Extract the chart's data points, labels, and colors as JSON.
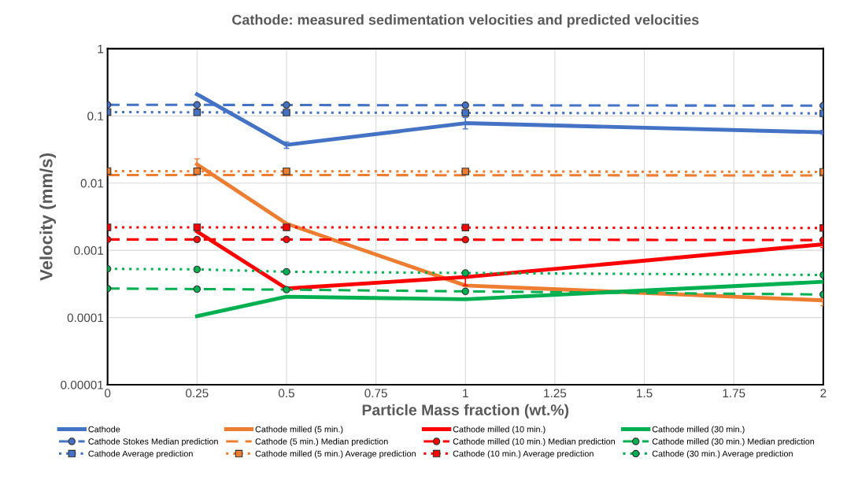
{
  "chart_data": {
    "type": "line",
    "title": "Cathode: measured sedimentation velocities and predicted velocities",
    "xlabel": "Particle Mass fraction (wt.%)",
    "ylabel": "Velocity (mm/s)",
    "log": "y",
    "grid": true,
    "legend": "bottom",
    "xlim": [
      0,
      2
    ],
    "xticks": [
      0,
      0.25,
      0.5,
      0.75,
      1,
      1.25,
      1.5,
      1.75,
      2
    ],
    "ylim": [
      1e-05,
      1
    ],
    "yticks": [
      {
        "value": 1e-05,
        "label": "0.00001"
      },
      {
        "value": 0.0001,
        "label": "0.0001"
      },
      {
        "value": 0.001,
        "label": "0.001"
      },
      {
        "value": 0.01,
        "label": "0.01"
      },
      {
        "value": 0.1,
        "label": "0.1"
      },
      {
        "value": 1,
        "label": "1"
      }
    ],
    "series": [
      {
        "name": "Cathode",
        "color": "#4472c4",
        "line_style": "solid",
        "marker": "none",
        "x": [
          0.25,
          0.5,
          1,
          2
        ],
        "values": [
          0.21,
          0.037,
          0.078,
          0.057
        ],
        "errors": [
          null,
          [
            0.033,
            0.041
          ],
          [
            0.064,
            0.095
          ],
          [
            0.053,
            0.061
          ]
        ]
      },
      {
        "name": "Cathode milled (5 min.)",
        "color": "#ed7d31",
        "line_style": "solid",
        "marker": "none",
        "x": [
          0.25,
          0.5,
          1,
          2
        ],
        "values": [
          0.019,
          0.0025,
          0.0003,
          0.00018
        ],
        "errors": [
          [
            0.016,
            0.023
          ],
          null,
          null,
          [
            0.00015,
            0.0002
          ]
        ]
      },
      {
        "name": "Cathode milled (10 min.)",
        "color": "#ff0000",
        "line_style": "solid",
        "marker": "none",
        "x": [
          0.25,
          0.5,
          1,
          2
        ],
        "values": [
          0.0019,
          0.00027,
          0.0004,
          0.00123
        ],
        "errors": [
          null,
          null,
          [
            0.0003,
            0.00046
          ],
          [
            0.0011,
            0.0013
          ]
        ]
      },
      {
        "name": "Cathode milled (30 min.)",
        "color": "#00b050",
        "line_style": "solid",
        "marker": "none",
        "x": [
          0.25,
          0.5,
          1,
          2
        ],
        "values": [
          0.000105,
          0.000204,
          0.000187,
          0.00034
        ]
      },
      {
        "name": "Cathode Stokes Median prediction",
        "color": "#4472c4",
        "line_style": "dashed",
        "marker": "circle",
        "x": [
          0,
          0.25,
          0.5,
          1,
          2
        ],
        "values": [
          0.146,
          0.146,
          0.145,
          0.144,
          0.142
        ]
      },
      {
        "name": "Cathode (5 min.) Median prediction",
        "color": "#ed7d31",
        "line_style": "dashed",
        "marker": "none",
        "x": [
          0,
          0.25,
          0.5,
          1,
          2
        ],
        "values": [
          0.0132,
          0.0132,
          0.0132,
          0.0131,
          0.013
        ]
      },
      {
        "name": "Cathode milled (10 min.) Median prediction",
        "color": "#ff0000",
        "line_style": "dashed",
        "marker": "circle",
        "x": [
          0,
          0.25,
          0.5,
          1,
          2
        ],
        "values": [
          0.00145,
          0.00145,
          0.00145,
          0.00144,
          0.00142
        ]
      },
      {
        "name": "Cathode milled (30 min.) Median prediction",
        "color": "#00b050",
        "line_style": "dashed",
        "marker": "circle",
        "x": [
          0,
          0.25,
          0.5,
          1,
          2
        ],
        "values": [
          0.00027,
          0.000265,
          0.00026,
          0.000245,
          0.00022
        ]
      },
      {
        "name": "Cathode Average prediction",
        "color": "#4472c4",
        "line_style": "dotted",
        "marker": "square",
        "x": [
          0,
          0.25,
          0.5,
          1,
          2
        ],
        "values": [
          0.114,
          0.113,
          0.112,
          0.111,
          0.109
        ]
      },
      {
        "name": "Cathode milled (5 min.) Average prediction",
        "color": "#ed7d31",
        "line_style": "dotted",
        "marker": "square",
        "x": [
          0,
          0.25,
          0.5,
          1,
          2
        ],
        "values": [
          0.0151,
          0.015,
          0.015,
          0.0149,
          0.0147
        ]
      },
      {
        "name": "Cathode (10 min.) Average prediction",
        "color": "#ff0000",
        "line_style": "dotted",
        "marker": "square",
        "x": [
          0,
          0.25,
          0.5,
          1,
          2
        ],
        "values": [
          0.0022,
          0.0022,
          0.0022,
          0.00218,
          0.00215
        ]
      },
      {
        "name": "Cathode (30 min.) Average prediction",
        "color": "#00b050",
        "line_style": "dotted",
        "marker": "circle",
        "x": [
          0,
          0.25,
          0.5,
          1,
          2
        ],
        "values": [
          0.00053,
          0.00052,
          0.00048,
          0.00046,
          0.00043
        ]
      }
    ]
  }
}
